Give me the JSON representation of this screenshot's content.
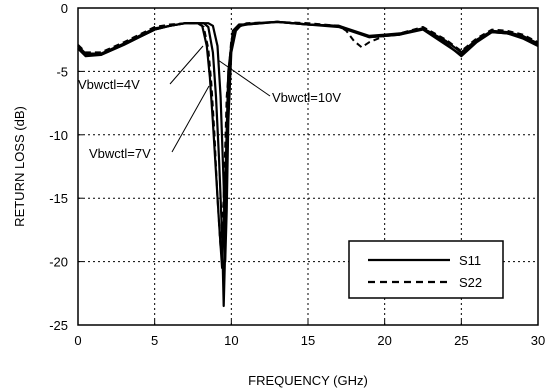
{
  "chart_data": {
    "type": "line",
    "title": "",
    "xlabel": "FREQUENCY (GHz)",
    "ylabel": "RETURN LOSS (dB)",
    "xlim": [
      0,
      30
    ],
    "ylim": [
      -25,
      0
    ],
    "x_ticks": [
      0,
      5,
      10,
      15,
      20,
      25,
      30
    ],
    "y_ticks": [
      0,
      -5,
      -10,
      -15,
      -20,
      -25
    ],
    "x_tick_labels": [
      "0",
      "5",
      "10",
      "15",
      "20",
      "25",
      "30"
    ],
    "y_tick_labels": [
      "0",
      "-5",
      "-10",
      "-15",
      "-20",
      "-25"
    ],
    "grid": "dotted",
    "legend": {
      "placement": "bottom-right",
      "entries": [
        {
          "label": "S11",
          "style": "solid"
        },
        {
          "label": "S22",
          "style": "dashed"
        }
      ]
    },
    "annotations": [
      {
        "text": "Vbwctl=4V",
        "x": 8.6,
        "y": -4.3
      },
      {
        "text": "Vbwctl=10V",
        "x": 9.6,
        "y": -3.5
      },
      {
        "text": "Vbwctl=7V",
        "x": 9.0,
        "y": -4.9
      }
    ],
    "series": [
      {
        "style": "solid",
        "x": [
          0,
          0.5,
          1.5,
          3,
          4,
          5,
          6,
          7,
          7.8,
          8.1,
          8.4,
          8.6,
          8.8,
          9.0,
          9.2,
          9.4,
          9.6,
          9.8,
          10.1,
          10.5,
          11,
          13,
          15,
          17,
          19,
          21,
          22.5,
          24,
          25,
          26,
          27,
          28,
          29,
          30
        ],
        "y": [
          -3,
          -3.6,
          -3.6,
          -2.8,
          -2.2,
          -1.6,
          -1.4,
          -1.2,
          -1.2,
          -1.4,
          -3,
          -5.5,
          -9,
          -13,
          -17,
          -20.5,
          -14,
          -5,
          -1.8,
          -1.3,
          -1.3,
          -1.1,
          -1.3,
          -1.4,
          -2.2,
          -2,
          -1.6,
          -2.6,
          -3.5,
          -2.5,
          -1.8,
          -1.9,
          -2.2,
          -2.8
        ]
      },
      {
        "style": "solid",
        "x": [
          0,
          0.5,
          1.5,
          3,
          4,
          5,
          6,
          7,
          8.2,
          8.5,
          8.8,
          9.0,
          9.2,
          9.4,
          9.5,
          9.6,
          9.8,
          10.0,
          10.3,
          10.8,
          11.5,
          13,
          15,
          17,
          19,
          21,
          22.5,
          24,
          25,
          26,
          27,
          28,
          29,
          30
        ],
        "y": [
          -3.1,
          -3.7,
          -3.7,
          -2.9,
          -2.3,
          -1.7,
          -1.4,
          -1.2,
          -1.2,
          -1.5,
          -3.5,
          -7,
          -12,
          -18,
          -23.5,
          -19,
          -8,
          -3,
          -1.6,
          -1.3,
          -1.2,
          -1.1,
          -1.3,
          -1.4,
          -2.3,
          -2.1,
          -1.6,
          -2.8,
          -3.8,
          -2.7,
          -1.9,
          -2,
          -2.4,
          -3
        ]
      },
      {
        "style": "solid",
        "x": [
          0,
          0.5,
          1.5,
          3,
          4,
          5,
          6,
          7,
          8.5,
          8.8,
          9.1,
          9.3,
          9.5,
          9.6,
          9.7,
          9.8,
          10.0,
          10.3,
          10.6,
          11,
          12,
          13,
          15,
          17,
          19,
          21,
          22.5,
          24,
          25,
          26,
          27,
          28,
          29,
          30
        ],
        "y": [
          -3.2,
          -3.8,
          -3.7,
          -2.9,
          -2.3,
          -1.7,
          -1.4,
          -1.2,
          -1.2,
          -1.4,
          -3,
          -7,
          -14,
          -20,
          -16,
          -9,
          -3.5,
          -1.8,
          -1.4,
          -1.3,
          -1.2,
          -1.1,
          -1.3,
          -1.5,
          -2.3,
          -2.1,
          -1.7,
          -2.9,
          -3.7,
          -2.6,
          -1.9,
          -2,
          -2.3,
          -2.9
        ]
      },
      {
        "style": "dashed",
        "x": [
          0,
          0.5,
          1.5,
          3,
          4,
          5,
          6,
          7,
          7.8,
          8.2,
          8.5,
          8.7,
          8.9,
          9.1,
          9.3,
          9.5,
          9.7,
          10.0,
          10.4,
          11,
          13,
          15,
          17,
          17.5,
          18,
          18.5,
          19,
          20,
          21,
          22.5,
          24,
          25,
          26,
          27,
          28,
          29,
          30
        ],
        "y": [
          -2.9,
          -3.5,
          -3.5,
          -2.7,
          -2.1,
          -1.5,
          -1.3,
          -1.2,
          -1.2,
          -1.5,
          -3.2,
          -6,
          -10,
          -15,
          -19,
          -15,
          -7,
          -2.5,
          -1.5,
          -1.2,
          -1.1,
          -1.2,
          -1.4,
          -1.8,
          -2.6,
          -3.1,
          -2.7,
          -2.2,
          -2,
          -1.5,
          -2.5,
          -3.4,
          -2.4,
          -1.7,
          -1.8,
          -2.1,
          -2.7
        ]
      }
    ]
  }
}
